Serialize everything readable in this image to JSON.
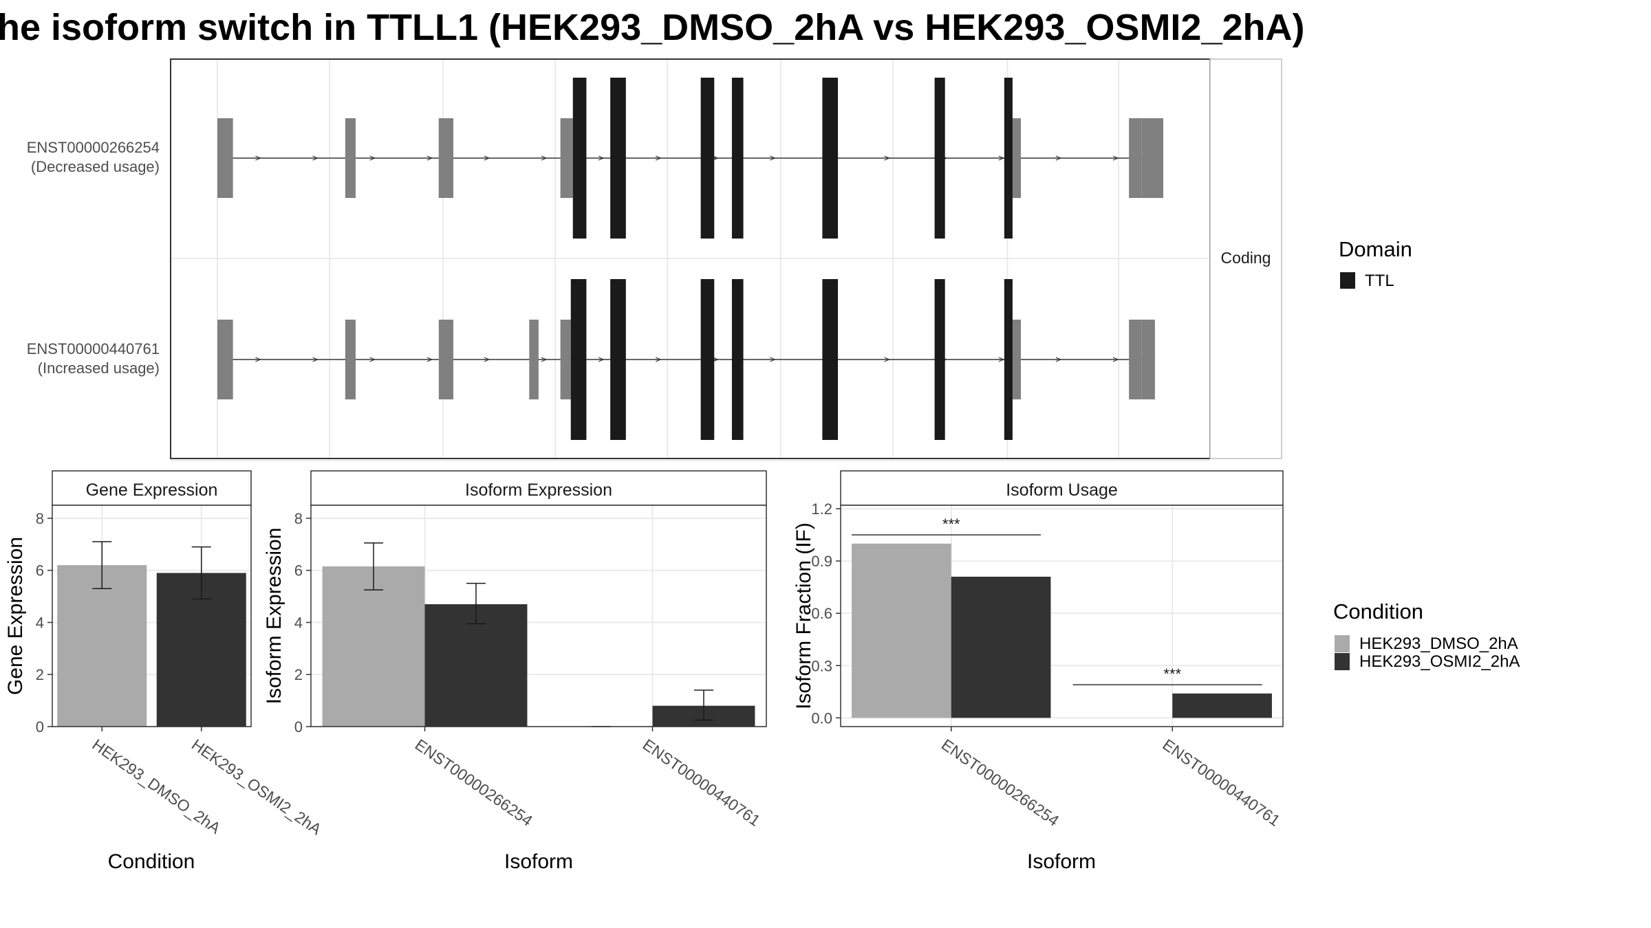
{
  "title": "he isoform switch in TTLL1 (HEK293_DMSO_2hA vs HEK293_OSMI2_2hA)",
  "colors": {
    "dmso": "#aaaaaa",
    "osmi": "#333333",
    "utr": "#808080",
    "domain": "#1a1a1a",
    "grid": "#ebebeb",
    "panel_border": "#333333",
    "strip_fill": "#f2f2f2"
  },
  "structure": {
    "facet_label": "Coding",
    "transcripts": [
      {
        "id": "ENST00000266254",
        "usage": "(Decreased usage)",
        "utr_exons": [
          [
            0.045,
            0.06
          ],
          [
            0.168,
            0.178
          ],
          [
            0.258,
            0.265
          ],
          [
            0.258,
            0.272
          ],
          [
            0.375,
            0.387
          ],
          [
            0.81,
            0.818
          ],
          [
            0.922,
            0.934
          ]
        ],
        "utr_small": [
          [
            0.934,
            0.955
          ]
        ],
        "coding_exons": [
          [
            0.387,
            0.4
          ],
          [
            0.423,
            0.438
          ],
          [
            0.51,
            0.523
          ],
          [
            0.54,
            0.551
          ],
          [
            0.627,
            0.642
          ],
          [
            0.735,
            0.745
          ],
          [
            0.802,
            0.81
          ]
        ]
      },
      {
        "id": "ENST00000440761",
        "usage": "(Increased usage)",
        "utr_exons": [
          [
            0.045,
            0.06
          ],
          [
            0.168,
            0.178
          ],
          [
            0.258,
            0.272
          ],
          [
            0.345,
            0.354
          ],
          [
            0.375,
            0.385
          ],
          [
            0.81,
            0.818
          ],
          [
            0.922,
            0.934
          ]
        ],
        "utr_small": [
          [
            0.934,
            0.947
          ]
        ],
        "coding_exons": [
          [
            0.385,
            0.4
          ],
          [
            0.423,
            0.438
          ],
          [
            0.51,
            0.523
          ],
          [
            0.54,
            0.551
          ],
          [
            0.627,
            0.642
          ],
          [
            0.735,
            0.745
          ],
          [
            0.802,
            0.81
          ]
        ]
      }
    ],
    "legend_title": "Domain",
    "legend_items": [
      "TTL"
    ]
  },
  "chart_data": [
    {
      "type": "bar",
      "title": "Gene Expression",
      "xlabel": "Condition",
      "ylabel": "Gene Expression",
      "ylim": [
        0,
        8.5
      ],
      "yticks": [
        "0",
        "2",
        "4",
        "6",
        "8"
      ],
      "categories": [
        "HEK293_DMSO_2hA",
        "HEK293_OSMI2_2hA"
      ],
      "bars": [
        {
          "category": "HEK293_DMSO_2hA",
          "series": "HEK293_DMSO_2hA",
          "value": 6.2,
          "err_low": 5.3,
          "err_high": 7.1
        },
        {
          "category": "HEK293_OSMI2_2hA",
          "series": "HEK293_OSMI2_2hA",
          "value": 5.9,
          "err_low": 4.9,
          "err_high": 6.9
        }
      ],
      "grid": true
    },
    {
      "type": "bar",
      "title": "Isoform Expression",
      "xlabel": "Isoform",
      "ylabel": "Isoform Expression",
      "ylim": [
        0,
        8.5
      ],
      "yticks": [
        "0",
        "2",
        "4",
        "6",
        "8"
      ],
      "categories": [
        "ENST00000266254",
        "ENST00000440761"
      ],
      "series": [
        {
          "name": "HEK293_DMSO_2hA",
          "values": [
            6.15,
            0.0
          ],
          "err_low": [
            5.25,
            0.0
          ],
          "err_high": [
            7.05,
            0.0
          ]
        },
        {
          "name": "HEK293_OSMI2_2hA",
          "values": [
            4.7,
            0.8
          ],
          "err_low": [
            3.95,
            0.25
          ],
          "err_high": [
            5.5,
            1.4
          ]
        }
      ],
      "grid": true
    },
    {
      "type": "bar",
      "title": "Isoform Usage",
      "xlabel": "Isoform",
      "ylabel": "Isoform Fraction (IF)",
      "ylim": [
        -0.05,
        1.22
      ],
      "yticks": [
        "0.0",
        "0.3",
        "0.6",
        "0.9",
        "1.2"
      ],
      "categories": [
        "ENST00000266254",
        "ENST00000440761"
      ],
      "series": [
        {
          "name": "HEK293_DMSO_2hA",
          "values": [
            1.0,
            0.0
          ]
        },
        {
          "name": "HEK293_OSMI2_2hA",
          "values": [
            0.81,
            0.14
          ]
        }
      ],
      "annotations": [
        {
          "category": "ENST00000266254",
          "text": "***",
          "y": 1.05
        },
        {
          "category": "ENST00000440761",
          "text": "***",
          "y": 0.19
        }
      ],
      "grid": true
    }
  ],
  "condition_legend": {
    "title": "Condition",
    "items": [
      "HEK293_DMSO_2hA",
      "HEK293_OSMI2_2hA"
    ]
  }
}
